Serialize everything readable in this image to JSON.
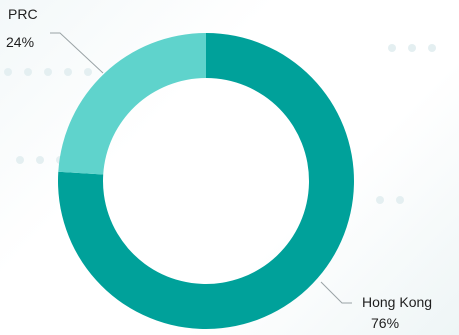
{
  "chart_data": {
    "type": "pie",
    "variant": "donut",
    "categories": [
      "Hong Kong",
      "PRC"
    ],
    "values": [
      76,
      24
    ],
    "value_labels": [
      "76%",
      "24%"
    ],
    "colors": [
      "#00a19a",
      "#5fd3cc"
    ],
    "title": "",
    "legend": "none"
  },
  "labels": {
    "prc_name": "PRC",
    "prc_value": "24%",
    "hk_name": "Hong Kong",
    "hk_value": "76%"
  }
}
